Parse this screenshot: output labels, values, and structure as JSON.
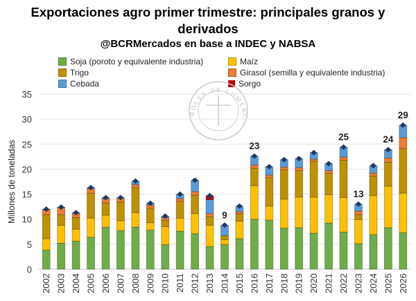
{
  "chart_data": {
    "type": "bar",
    "stacked": true,
    "title": "Exportaciones agro primer trimestre: principales granos y derivados",
    "title_line1": "Exportaciones agro primer trimestre: principales granos y",
    "title_line2": "derivados",
    "subtitle": "@BCRMercados en base a INDEC y NABSA",
    "ylabel": "Millones de toneladas",
    "xlabel": "",
    "ylim": [
      0,
      35
    ],
    "yticks": [
      0,
      5,
      10,
      15,
      20,
      25,
      30,
      35
    ],
    "grid": true,
    "legend_placement": "top",
    "categories": [
      "2002",
      "2003",
      "2004",
      "2005",
      "2006",
      "2007",
      "2008",
      "2009",
      "2010",
      "2011",
      "2012",
      "2013",
      "2014",
      "2015",
      "2016",
      "2017",
      "2018",
      "2019",
      "2020",
      "2021",
      "2022",
      "2023",
      "2024",
      "2025",
      "2026"
    ],
    "series": [
      {
        "name": "Soja (poroto y equivalente industria)",
        "color": "#70AD47",
        "values": [
          3.8,
          5.2,
          5.6,
          6.4,
          8.4,
          7.7,
          8.4,
          7.8,
          4.9,
          7.6,
          7.1,
          4.5,
          4.9,
          6.1,
          10.0,
          9.8,
          8.2,
          8.3,
          7.2,
          9.2,
          7.4,
          5.1,
          6.9,
          8.3,
          7.3
        ]
      },
      {
        "name": "Maíz",
        "color": "#FFC000",
        "values": [
          2.3,
          3.6,
          2.4,
          3.8,
          2.4,
          2.0,
          2.9,
          1.5,
          3.6,
          2.6,
          4.0,
          4.3,
          1.0,
          3.5,
          6.7,
          2.8,
          5.8,
          6.1,
          7.2,
          5.7,
          6.9,
          4.8,
          7.8,
          8.3,
          7.9
        ]
      },
      {
        "name": "Trigo",
        "color": "#BF9000",
        "values": [
          4.8,
          2.1,
          2.3,
          5.0,
          2.4,
          3.7,
          5.0,
          2.9,
          1.3,
          3.4,
          3.7,
          1.7,
          0.8,
          1.5,
          3.5,
          5.7,
          5.9,
          5.3,
          7.2,
          4.3,
          7.5,
          1.0,
          3.9,
          4.8,
          8.9
        ]
      },
      {
        "name": "Girasol (semilla y equivalente industria)",
        "color": "#ED7D31",
        "values": [
          1.0,
          1.4,
          0.8,
          0.9,
          0.9,
          0.8,
          0.6,
          0.6,
          0.5,
          0.5,
          0.7,
          0.6,
          0.0,
          0.4,
          0.6,
          0.5,
          0.5,
          0.6,
          0.4,
          0.5,
          0.6,
          0.7,
          0.6,
          0.8,
          2.2
        ]
      },
      {
        "name": "Cebada",
        "color": "#5B9BD5",
        "values": [
          0.1,
          0.1,
          0.2,
          0.2,
          0.2,
          0.1,
          0.7,
          0.4,
          0.3,
          0.9,
          2.3,
          2.8,
          2.1,
          1.1,
          1.8,
          1.7,
          1.5,
          1.8,
          1.3,
          1.4,
          2.0,
          1.4,
          1.5,
          1.7,
          2.5
        ]
      },
      {
        "name": "Sorgo",
        "color": "#C00000",
        "values": [
          0,
          0,
          0,
          0,
          0,
          0,
          0,
          0,
          0,
          0,
          0,
          0.8,
          0,
          0,
          0,
          0,
          0,
          0,
          0,
          0,
          0,
          0,
          0,
          0,
          0
        ]
      }
    ],
    "total_marker_color": "#1F3864",
    "data_labels": {
      "2014": "9",
      "2016": "23",
      "2022": "25",
      "2023": "13",
      "2025": "24",
      "2026": "29"
    }
  },
  "watermark": "BOLSA DE COMERCIO DE ROSARIO"
}
